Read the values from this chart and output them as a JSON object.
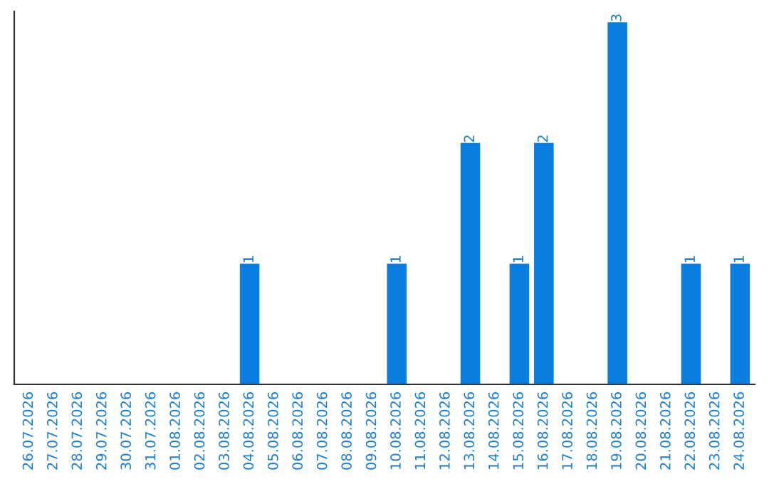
{
  "chart_data": {
    "type": "bar",
    "categories": [
      "26.07.2026",
      "27.07.2026",
      "28.07.2026",
      "29.07.2026",
      "30.07.2026",
      "31.07.2026",
      "01.08.2026",
      "02.08.2026",
      "03.08.2026",
      "04.08.2026",
      "05.08.2026",
      "06.08.2026",
      "07.08.2026",
      "08.08.2026",
      "09.08.2026",
      "10.08.2026",
      "11.08.2026",
      "12.08.2026",
      "13.08.2026",
      "14.08.2026",
      "15.08.2026",
      "16.08.2026",
      "17.08.2026",
      "18.08.2026",
      "19.08.2026",
      "20.08.2026",
      "21.08.2026",
      "22.08.2026",
      "23.08.2026",
      "24.08.2026"
    ],
    "values": [
      0,
      0,
      0,
      0,
      0,
      0,
      0,
      0,
      0,
      1,
      0,
      0,
      0,
      0,
      0,
      1,
      0,
      0,
      2,
      0,
      1,
      2,
      0,
      0,
      3,
      0,
      0,
      1,
      0,
      1
    ],
    "value_labels": [
      null,
      null,
      null,
      null,
      null,
      null,
      null,
      null,
      null,
      "1",
      null,
      null,
      null,
      null,
      null,
      "1",
      null,
      null,
      "2",
      null,
      "1",
      "2",
      null,
      null,
      "3",
      null,
      null,
      "1",
      null,
      "1"
    ],
    "color": "#0a7de0",
    "ylim": [
      0,
      3.0
    ],
    "tick_labels": "x",
    "grid": false,
    "legend": false
  }
}
